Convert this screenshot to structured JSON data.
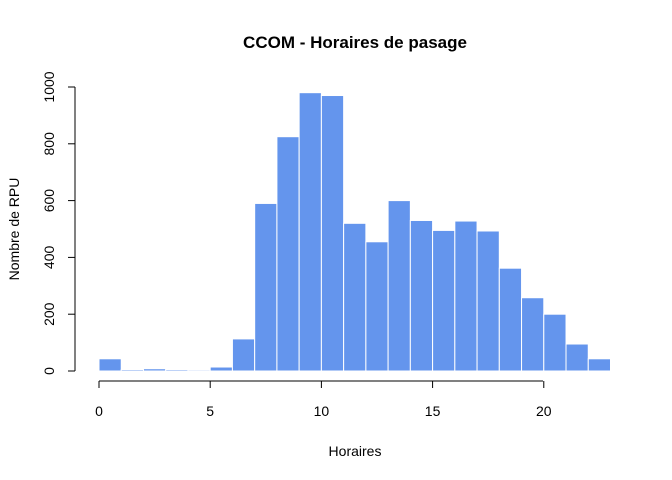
{
  "chart_data": {
    "type": "bar",
    "title": "CCOM - Horaires de pasage",
    "xlabel": "Horaires",
    "ylabel": "Nombre de RPU",
    "bar_color": "#6495ED",
    "bins": [
      {
        "from": 0,
        "to": 1,
        "value": 43
      },
      {
        "from": 1,
        "to": 2,
        "value": 5
      },
      {
        "from": 2,
        "to": 3,
        "value": 8
      },
      {
        "from": 3,
        "to": 4,
        "value": 5
      },
      {
        "from": 4,
        "to": 5,
        "value": 4
      },
      {
        "from": 5,
        "to": 6,
        "value": 14
      },
      {
        "from": 6,
        "to": 7,
        "value": 113
      },
      {
        "from": 7,
        "to": 8,
        "value": 590
      },
      {
        "from": 8,
        "to": 9,
        "value": 825
      },
      {
        "from": 9,
        "to": 10,
        "value": 980
      },
      {
        "from": 10,
        "to": 11,
        "value": 970
      },
      {
        "from": 11,
        "to": 12,
        "value": 520
      },
      {
        "from": 12,
        "to": 13,
        "value": 455
      },
      {
        "from": 13,
        "to": 14,
        "value": 600
      },
      {
        "from": 14,
        "to": 15,
        "value": 530
      },
      {
        "from": 15,
        "to": 16,
        "value": 495
      },
      {
        "from": 16,
        "to": 17,
        "value": 528
      },
      {
        "from": 17,
        "to": 18,
        "value": 493
      },
      {
        "from": 18,
        "to": 19,
        "value": 362
      },
      {
        "from": 19,
        "to": 20,
        "value": 258
      },
      {
        "from": 20,
        "to": 21,
        "value": 200
      },
      {
        "from": 21,
        "to": 22,
        "value": 95
      },
      {
        "from": 22,
        "to": 23,
        "value": 43
      }
    ],
    "xlim": [
      0,
      23
    ],
    "ylim": [
      0,
      1000
    ],
    "x_ticks": [
      0,
      5,
      10,
      15,
      20
    ],
    "y_ticks": [
      0,
      200,
      400,
      600,
      800,
      1000
    ],
    "grid": false,
    "legend": "none"
  }
}
